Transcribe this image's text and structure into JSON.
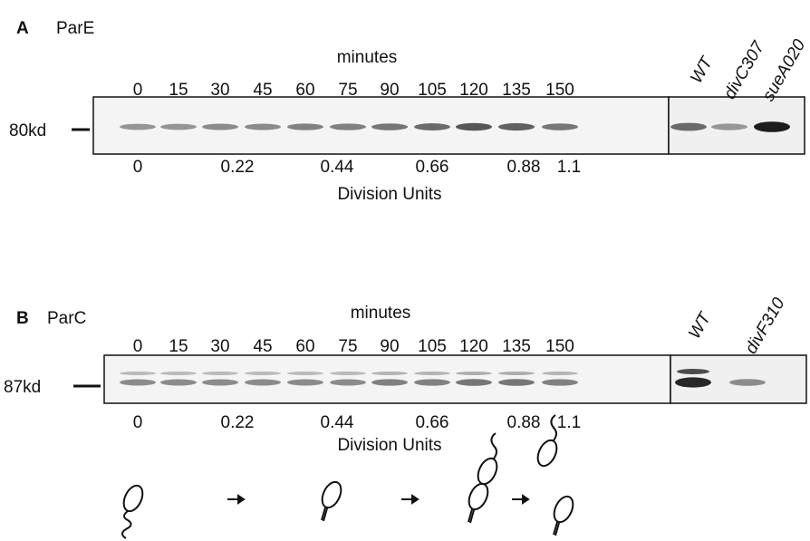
{
  "panels": [
    {
      "label": "A",
      "protein": "ParE",
      "axis_title": "minutes",
      "time_points": [
        0,
        15,
        30,
        45,
        60,
        75,
        90,
        105,
        120,
        135,
        150
      ],
      "strains": [
        "WT",
        "divC307",
        "sueA020"
      ],
      "marker": "80kd",
      "division_units": [
        0,
        0.22,
        0.44,
        0.66,
        0.88,
        1.1
      ],
      "division_units_title": "Division Units"
    },
    {
      "label": "B",
      "protein": "ParC",
      "axis_title": "minutes",
      "time_points": [
        0,
        15,
        30,
        45,
        60,
        75,
        90,
        105,
        120,
        135,
        150
      ],
      "strains": [
        "WT",
        "divF310"
      ],
      "marker": "87kd",
      "division_units": [
        0,
        0.22,
        0.44,
        0.66,
        0.88,
        1.1
      ],
      "division_units_title": "Division Units"
    }
  ]
}
